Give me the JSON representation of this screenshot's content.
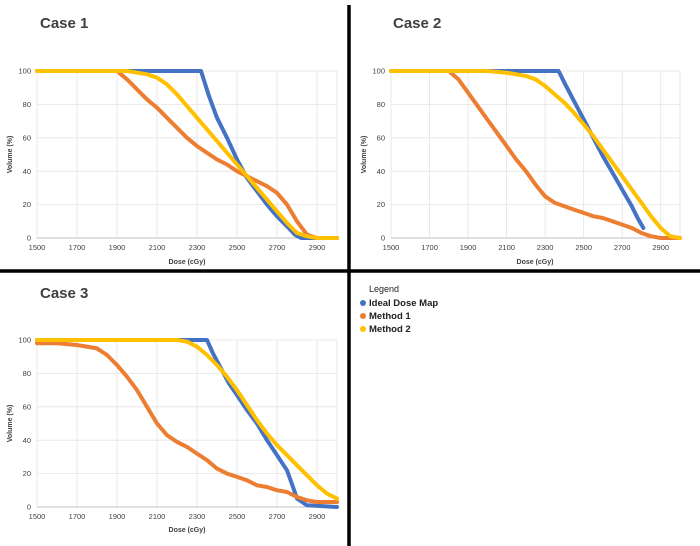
{
  "colors": {
    "ideal": "#4472C4",
    "method1": "#ED7D31",
    "method2": "#FFC000",
    "grid": "#E3E3E3",
    "divider": "#000000"
  },
  "legend": {
    "title": "Legend",
    "items": [
      {
        "label": "Ideal Dose Map",
        "color": "#4472C4"
      },
      {
        "label": "Method 1",
        "color": "#ED7D31"
      },
      {
        "label": "Method 2",
        "color": "#FFC000"
      }
    ]
  },
  "chart_data": [
    {
      "type": "line",
      "title": "Case 1",
      "xlabel": "Dose (cGy)",
      "ylabel": "Volume (%)",
      "xlim": [
        1500,
        3000
      ],
      "ylim": [
        0,
        100
      ],
      "xticks": [
        1500,
        1700,
        1900,
        2100,
        2300,
        2500,
        2700,
        2900
      ],
      "yticks": [
        0,
        20,
        40,
        60,
        80,
        100
      ],
      "grid": true,
      "series": [
        {
          "name": "Ideal Dose Map",
          "points": [
            [
              1500,
              100
            ],
            [
              2320,
              100
            ],
            [
              2360,
              85
            ],
            [
              2400,
              72
            ],
            [
              2450,
              60
            ],
            [
              2500,
              47
            ],
            [
              2550,
              36
            ],
            [
              2600,
              28
            ],
            [
              2650,
              20
            ],
            [
              2700,
              13
            ],
            [
              2750,
              7
            ],
            [
              2790,
              2
            ],
            [
              2820,
              0
            ],
            [
              3000,
              0
            ]
          ]
        },
        {
          "name": "Method 1",
          "points": [
            [
              1500,
              100
            ],
            [
              1900,
              100
            ],
            [
              1950,
              95
            ],
            [
              2000,
              89
            ],
            [
              2050,
              83
            ],
            [
              2100,
              78
            ],
            [
              2150,
              72
            ],
            [
              2200,
              66
            ],
            [
              2250,
              60
            ],
            [
              2300,
              55
            ],
            [
              2350,
              51
            ],
            [
              2400,
              47
            ],
            [
              2450,
              44
            ],
            [
              2500,
              40
            ],
            [
              2550,
              37
            ],
            [
              2600,
              34
            ],
            [
              2650,
              31
            ],
            [
              2700,
              27
            ],
            [
              2750,
              20
            ],
            [
              2800,
              10
            ],
            [
              2850,
              2
            ],
            [
              2900,
              0
            ],
            [
              3000,
              0
            ]
          ]
        },
        {
          "name": "Method 2",
          "points": [
            [
              1500,
              100
            ],
            [
              1950,
              100
            ],
            [
              2050,
              98
            ],
            [
              2100,
              96
            ],
            [
              2150,
              92
            ],
            [
              2200,
              86
            ],
            [
              2250,
              79
            ],
            [
              2300,
              72
            ],
            [
              2350,
              65
            ],
            [
              2400,
              58
            ],
            [
              2450,
              51
            ],
            [
              2500,
              44
            ],
            [
              2550,
              37
            ],
            [
              2600,
              30
            ],
            [
              2650,
              23
            ],
            [
              2700,
              16
            ],
            [
              2750,
              9
            ],
            [
              2800,
              3
            ],
            [
              2850,
              1
            ],
            [
              2900,
              0
            ],
            [
              3000,
              0
            ]
          ]
        }
      ]
    },
    {
      "type": "line",
      "title": "Case 2",
      "xlabel": "Dose (cGy)",
      "ylabel": "Volume (%)",
      "xlim": [
        1500,
        3000
      ],
      "ylim": [
        0,
        100
      ],
      "xticks": [
        1500,
        1700,
        1900,
        2100,
        2300,
        2500,
        2700,
        2900
      ],
      "yticks": [
        0,
        20,
        40,
        60,
        80,
        100
      ],
      "grid": true,
      "series": [
        {
          "name": "Ideal Dose Map",
          "points": [
            [
              1500,
              100
            ],
            [
              2370,
              100
            ],
            [
              2400,
              93
            ],
            [
              2450,
              82
            ],
            [
              2500,
              71
            ],
            [
              2550,
              60
            ],
            [
              2600,
              49
            ],
            [
              2650,
              39
            ],
            [
              2700,
              29
            ],
            [
              2750,
              19
            ],
            [
              2780,
              12
            ],
            [
              2810,
              6
            ]
          ]
        },
        {
          "name": "Method 1",
          "points": [
            [
              1500,
              100
            ],
            [
              1800,
              100
            ],
            [
              1850,
              95
            ],
            [
              1900,
              87
            ],
            [
              1950,
              79
            ],
            [
              2000,
              71
            ],
            [
              2050,
              63
            ],
            [
              2100,
              55
            ],
            [
              2150,
              47
            ],
            [
              2200,
              40
            ],
            [
              2250,
              32
            ],
            [
              2300,
              25
            ],
            [
              2350,
              21
            ],
            [
              2400,
              19
            ],
            [
              2450,
              17
            ],
            [
              2500,
              15
            ],
            [
              2550,
              13
            ],
            [
              2600,
              12
            ],
            [
              2650,
              10
            ],
            [
              2700,
              8
            ],
            [
              2750,
              6
            ],
            [
              2800,
              3
            ],
            [
              2850,
              1
            ],
            [
              2900,
              0
            ],
            [
              3000,
              0
            ]
          ]
        },
        {
          "name": "Method 2",
          "points": [
            [
              1500,
              100
            ],
            [
              2000,
              100
            ],
            [
              2100,
              99
            ],
            [
              2200,
              97
            ],
            [
              2250,
              95
            ],
            [
              2300,
              91
            ],
            [
              2350,
              86
            ],
            [
              2400,
              81
            ],
            [
              2450,
              75
            ],
            [
              2500,
              68
            ],
            [
              2550,
              61
            ],
            [
              2600,
              53
            ],
            [
              2650,
              45
            ],
            [
              2700,
              37
            ],
            [
              2750,
              29
            ],
            [
              2800,
              21
            ],
            [
              2850,
              13
            ],
            [
              2900,
              6
            ],
            [
              2950,
              1
            ],
            [
              3000,
              0
            ]
          ]
        }
      ]
    },
    {
      "type": "line",
      "title": "Case 3",
      "xlabel": "Dose (cGy)",
      "ylabel": "Volume (%)",
      "xlim": [
        1500,
        3000
      ],
      "ylim": [
        0,
        100
      ],
      "xticks": [
        1500,
        1700,
        1900,
        2100,
        2300,
        2500,
        2700,
        2900
      ],
      "yticks": [
        0,
        20,
        40,
        60,
        80,
        100
      ],
      "grid": true,
      "series": [
        {
          "name": "Ideal Dose Map",
          "points": [
            [
              1500,
              100
            ],
            [
              2350,
              100
            ],
            [
              2380,
              92
            ],
            [
              2420,
              83
            ],
            [
              2460,
              74
            ],
            [
              2500,
              67
            ],
            [
              2550,
              58
            ],
            [
              2600,
              50
            ],
            [
              2650,
              40
            ],
            [
              2700,
              31
            ],
            [
              2750,
              22
            ],
            [
              2780,
              12
            ],
            [
              2800,
              5
            ],
            [
              2850,
              1
            ],
            [
              3000,
              0
            ]
          ]
        },
        {
          "name": "Method 1",
          "points": [
            [
              1500,
              98
            ],
            [
              1600,
              98
            ],
            [
              1700,
              97
            ],
            [
              1800,
              95
            ],
            [
              1850,
              91
            ],
            [
              1900,
              85
            ],
            [
              1950,
              78
            ],
            [
              2000,
              70
            ],
            [
              2050,
              60
            ],
            [
              2100,
              50
            ],
            [
              2150,
              43
            ],
            [
              2200,
              39
            ],
            [
              2250,
              36
            ],
            [
              2300,
              32
            ],
            [
              2350,
              28
            ],
            [
              2400,
              23
            ],
            [
              2450,
              20
            ],
            [
              2500,
              18
            ],
            [
              2550,
              16
            ],
            [
              2600,
              13
            ],
            [
              2650,
              12
            ],
            [
              2700,
              10
            ],
            [
              2750,
              9
            ],
            [
              2800,
              6
            ],
            [
              2850,
              4
            ],
            [
              2900,
              3
            ],
            [
              3000,
              3
            ]
          ]
        },
        {
          "name": "Method 2",
          "points": [
            [
              1500,
              100
            ],
            [
              2200,
              100
            ],
            [
              2250,
              99
            ],
            [
              2300,
              96
            ],
            [
              2350,
              91
            ],
            [
              2400,
              85
            ],
            [
              2450,
              78
            ],
            [
              2500,
              70
            ],
            [
              2550,
              61
            ],
            [
              2600,
              52
            ],
            [
              2650,
              44
            ],
            [
              2700,
              37
            ],
            [
              2750,
              31
            ],
            [
              2800,
              25
            ],
            [
              2850,
              19
            ],
            [
              2900,
              13
            ],
            [
              2950,
              8
            ],
            [
              3000,
              5
            ]
          ]
        }
      ]
    }
  ]
}
